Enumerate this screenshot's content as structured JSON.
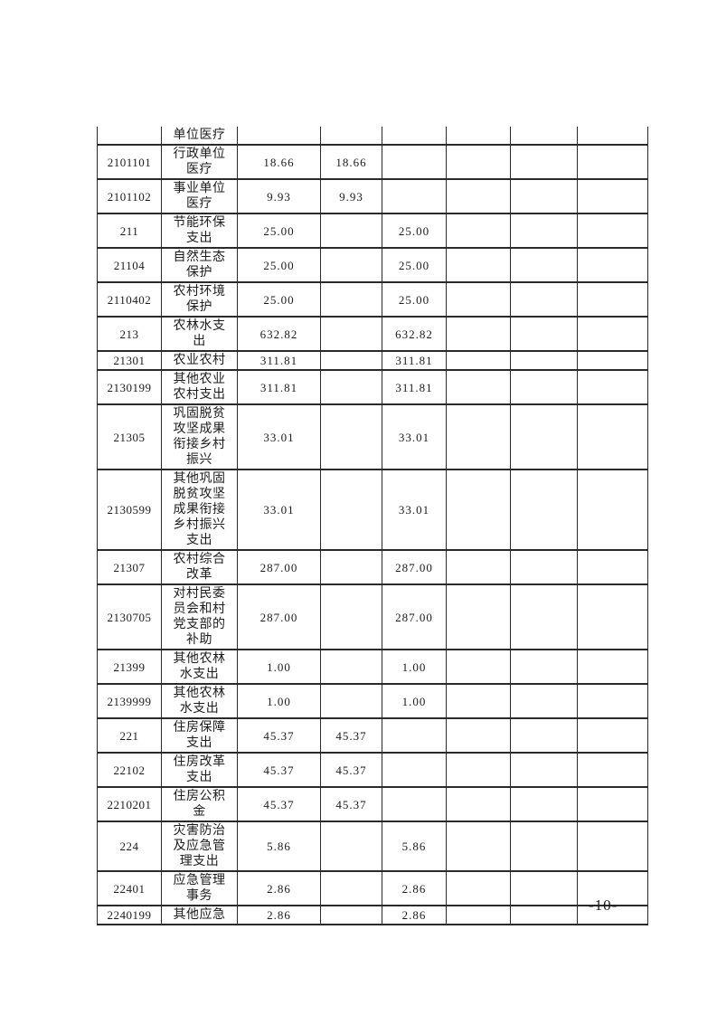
{
  "page": {
    "number_label": "-10-"
  },
  "colors": {
    "page_background": "#ffffff",
    "text": "#1c1c1c",
    "table_border": "#2a2a2a"
  },
  "table": {
    "description": "Budget expenditure table continued from previous page (no header row visible)",
    "value_columns": 6,
    "rows": [
      {
        "code": "",
        "name": "单位医疗",
        "values": [
          "",
          "",
          "",
          "",
          "",
          ""
        ]
      },
      {
        "code": "2101101",
        "name": "行政单位\n医疗",
        "values": [
          "18.66",
          "18.66",
          "",
          "",
          "",
          ""
        ]
      },
      {
        "code": "2101102",
        "name": "事业单位\n医疗",
        "values": [
          "9.93",
          "9.93",
          "",
          "",
          "",
          ""
        ]
      },
      {
        "code": "211",
        "name": "节能环保\n支出",
        "values": [
          "25.00",
          "",
          "25.00",
          "",
          "",
          ""
        ]
      },
      {
        "code": "21104",
        "name": "自然生态\n保护",
        "values": [
          "25.00",
          "",
          "25.00",
          "",
          "",
          ""
        ]
      },
      {
        "code": "2110402",
        "name": "农村环境\n保护",
        "values": [
          "25.00",
          "",
          "25.00",
          "",
          "",
          ""
        ]
      },
      {
        "code": "213",
        "name": "农林水支\n出",
        "values": [
          "632.82",
          "",
          "632.82",
          "",
          "",
          ""
        ]
      },
      {
        "code": "21301",
        "name": "农业农村",
        "values": [
          "311.81",
          "",
          "311.81",
          "",
          "",
          ""
        ]
      },
      {
        "code": "2130199",
        "name": "其他农业\n农村支出",
        "values": [
          "311.81",
          "",
          "311.81",
          "",
          "",
          ""
        ]
      },
      {
        "code": "21305",
        "name": "巩固脱贫\n攻坚成果\n衔接乡村\n振兴",
        "values": [
          "33.01",
          "",
          "33.01",
          "",
          "",
          ""
        ]
      },
      {
        "code": "2130599",
        "name": "其他巩固\n脱贫攻坚\n成果衔接\n乡村振兴\n支出",
        "values": [
          "33.01",
          "",
          "33.01",
          "",
          "",
          ""
        ]
      },
      {
        "code": "21307",
        "name": "农村综合\n改革",
        "values": [
          "287.00",
          "",
          "287.00",
          "",
          "",
          ""
        ]
      },
      {
        "code": "2130705",
        "name": "对村民委\n员会和村\n党支部的\n补助",
        "values": [
          "287.00",
          "",
          "287.00",
          "",
          "",
          ""
        ]
      },
      {
        "code": "21399",
        "name": "其他农林\n水支出",
        "values": [
          "1.00",
          "",
          "1.00",
          "",
          "",
          ""
        ]
      },
      {
        "code": "2139999",
        "name": "其他农林\n水支出",
        "values": [
          "1.00",
          "",
          "1.00",
          "",
          "",
          ""
        ]
      },
      {
        "code": "221",
        "name": "住房保障\n支出",
        "values": [
          "45.37",
          "45.37",
          "",
          "",
          "",
          ""
        ]
      },
      {
        "code": "22102",
        "name": "住房改革\n支出",
        "values": [
          "45.37",
          "45.37",
          "",
          "",
          "",
          ""
        ]
      },
      {
        "code": "2210201",
        "name": "住房公积\n金",
        "values": [
          "45.37",
          "45.37",
          "",
          "",
          "",
          ""
        ]
      },
      {
        "code": "224",
        "name": "灾害防治\n及应急管\n理支出",
        "values": [
          "5.86",
          "",
          "5.86",
          "",
          "",
          ""
        ]
      },
      {
        "code": "22401",
        "name": "应急管理\n事务",
        "values": [
          "2.86",
          "",
          "2.86",
          "",
          "",
          ""
        ]
      },
      {
        "code": "2240199",
        "name": "其他应急",
        "values": [
          "2.86",
          "",
          "2.86",
          "",
          "",
          ""
        ]
      }
    ]
  }
}
